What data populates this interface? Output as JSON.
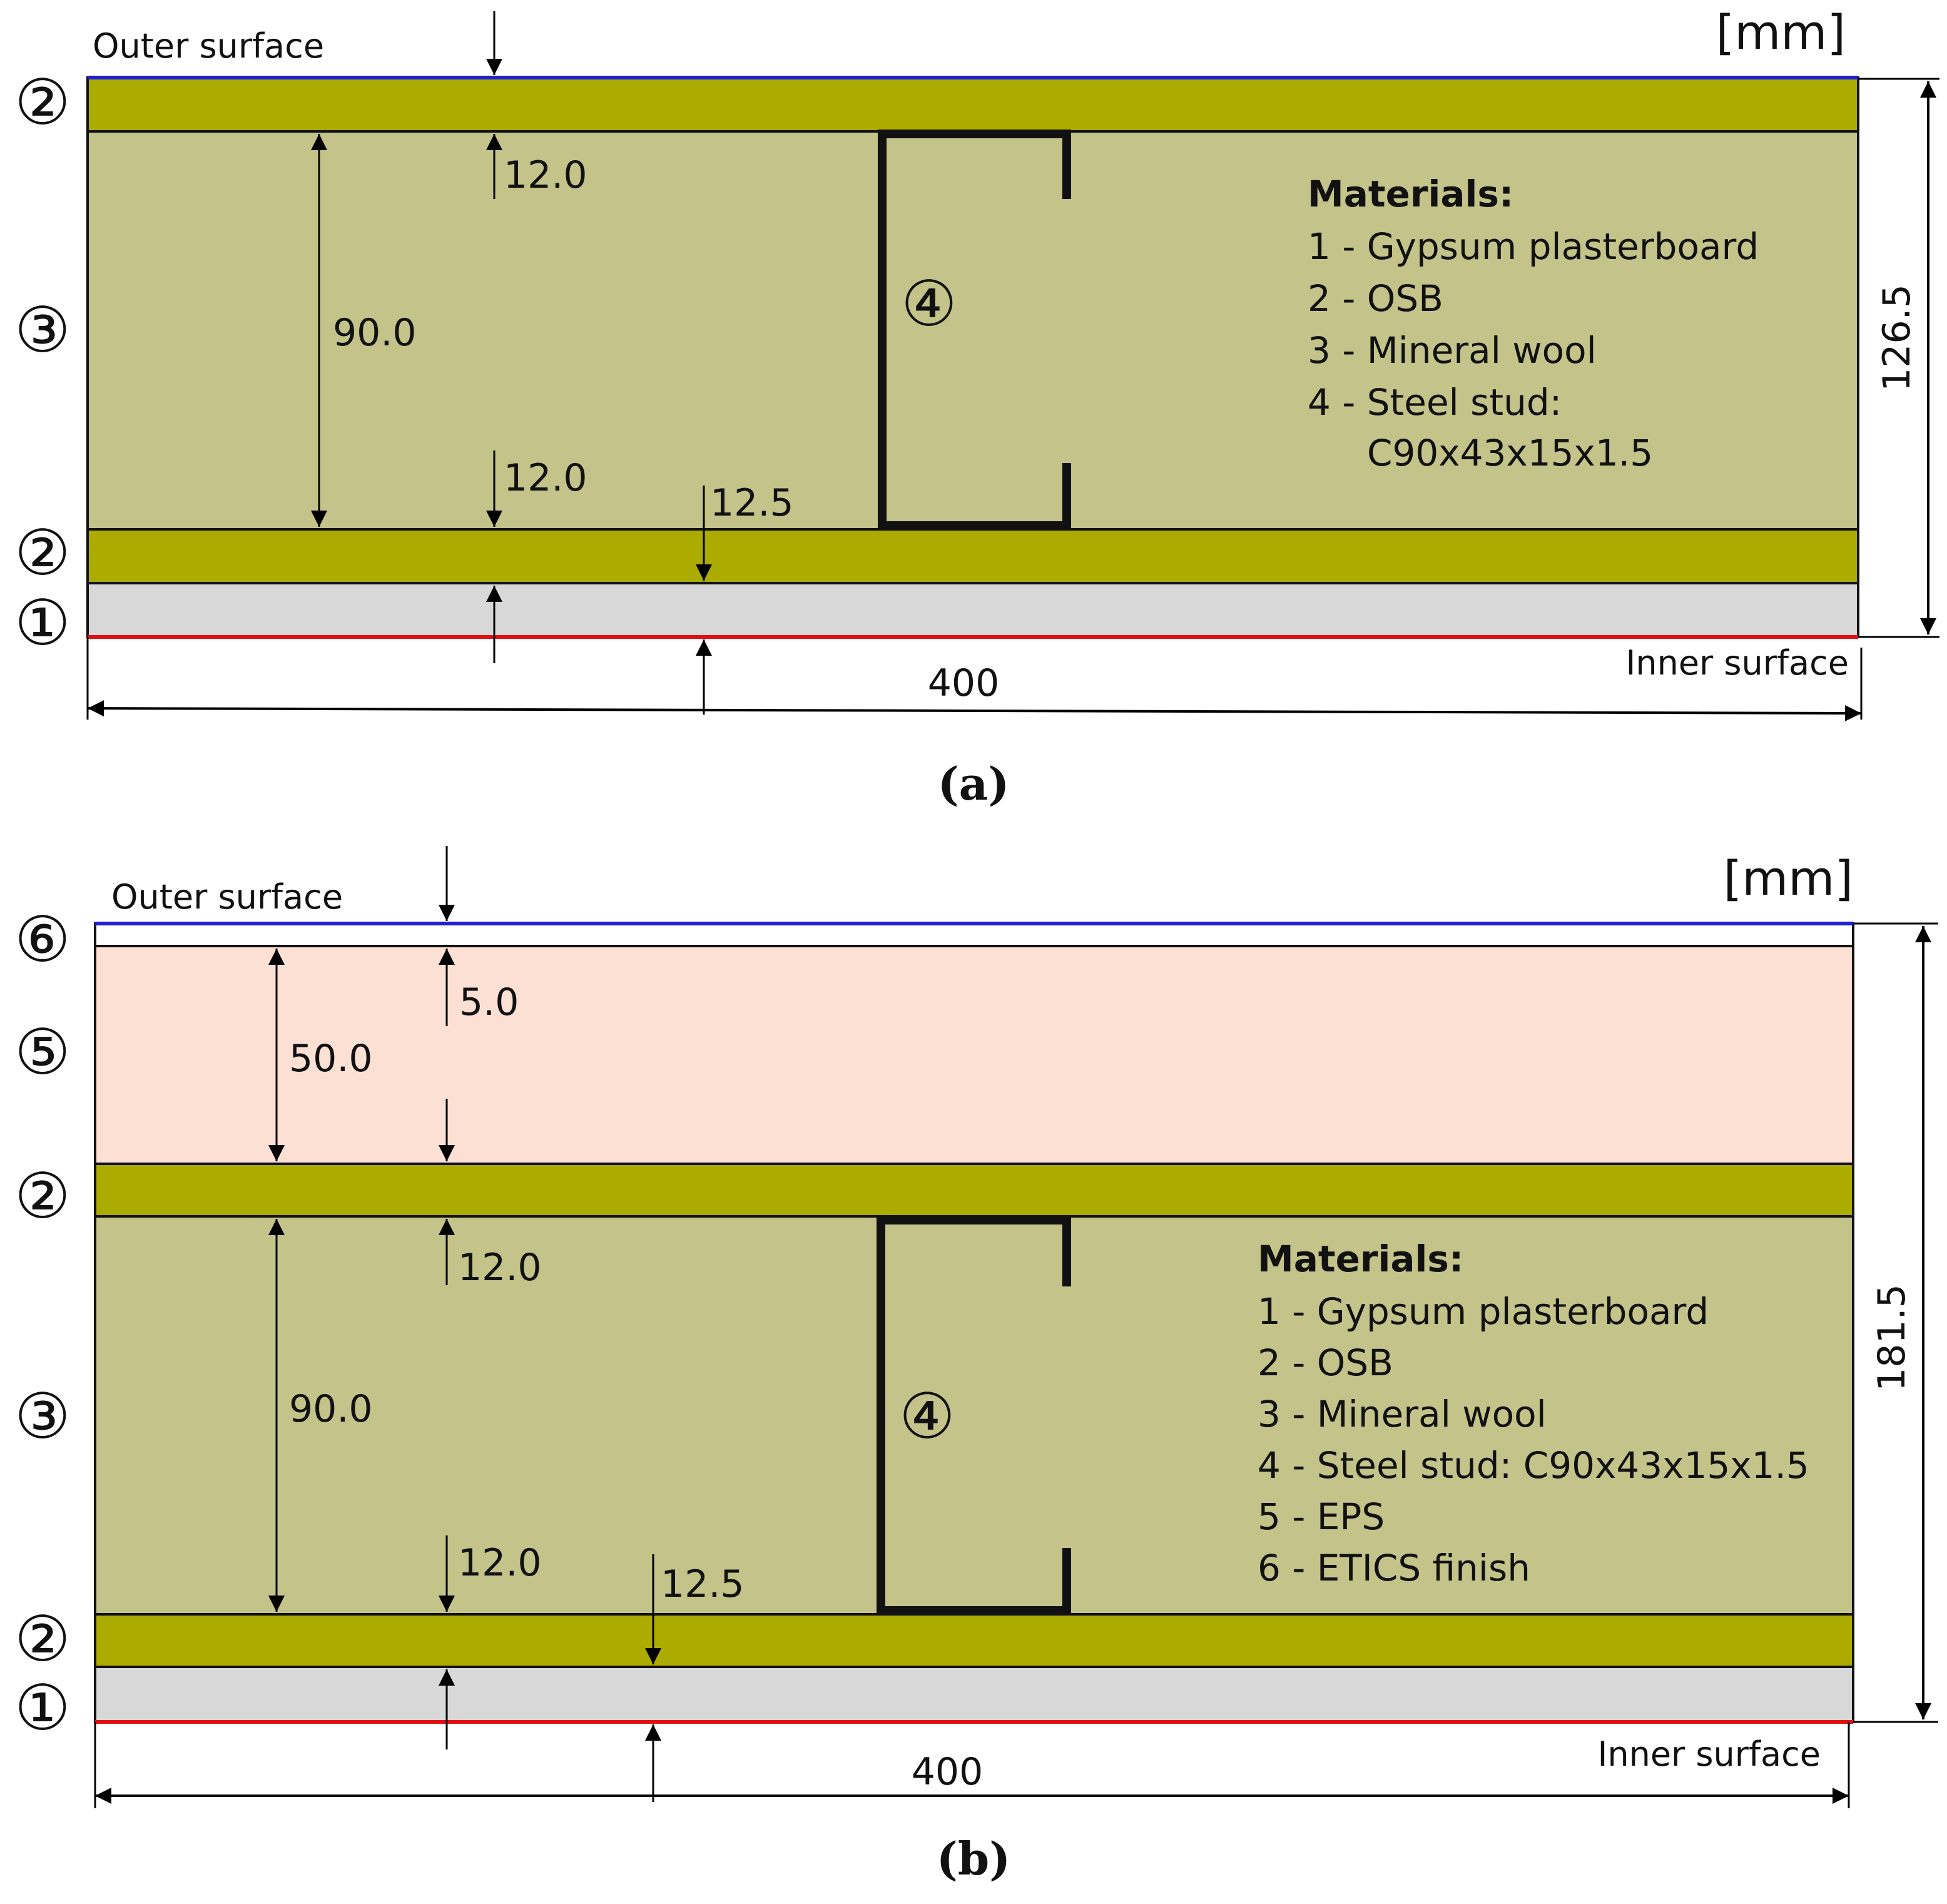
{
  "units": "[mm]",
  "diagrams": [
    {
      "caption": "(a)",
      "outer_label": "Outer surface",
      "inner_label": "Inner surface",
      "units": "[mm]",
      "stud_marker": "④",
      "layer_markers": [
        "②",
        "③",
        "②",
        "①"
      ],
      "dims": {
        "top_gap": "12.0",
        "cavity": "90.0",
        "bottom_gap": "12.0",
        "board": "12.5",
        "width": "400",
        "total": "126.5"
      },
      "materials_title": "Materials:",
      "materials": [
        "1 - Gypsum plasterboard",
        "2 - OSB",
        "3 - Mineral wool",
        "4 - Steel stud:",
        "C90x43x15x1.5"
      ]
    },
    {
      "caption": "(b)",
      "outer_label": "Outer surface",
      "inner_label": "Inner surface",
      "units": "[mm]",
      "stud_marker": "④",
      "layer_markers": [
        "⑥",
        "⑤",
        "②",
        "③",
        "②",
        "①"
      ],
      "dims": {
        "finish": "5.0",
        "eps": "50.0",
        "top_gap": "12.0",
        "cavity": "90.0",
        "bottom_gap": "12.0",
        "board": "12.5",
        "width": "400",
        "total": "181.5"
      },
      "materials_title": "Materials:",
      "materials": [
        "1 - Gypsum plasterboard",
        "2 - OSB",
        "3 - Mineral wool",
        "4 - Steel stud: C90x43x15x1.5",
        "5 - EPS",
        "6 - ETICS finish"
      ]
    }
  ],
  "colors": {
    "osb": "#abab00",
    "mineral_wool": "#c3c38a",
    "gypsum": "#d8d8d8",
    "eps": "#fde0d4",
    "outer_line": "#1f1fd6",
    "inner_line": "#e01010"
  }
}
